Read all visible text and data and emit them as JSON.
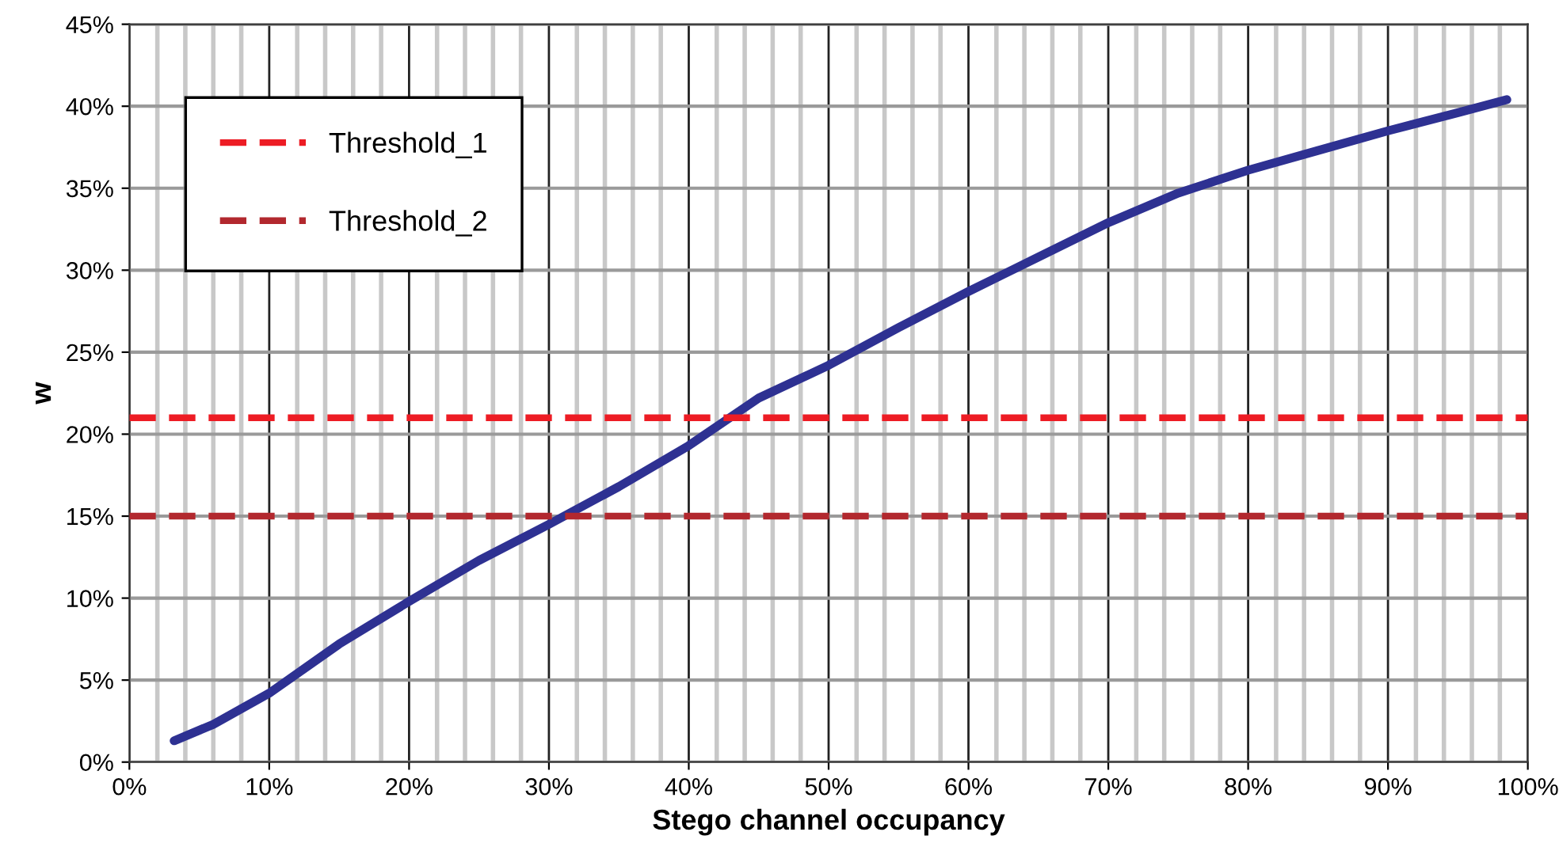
{
  "chart_data": {
    "type": "line",
    "xlabel": "Stego channel occupancy",
    "ylabel": "w",
    "xlim": [
      0,
      100
    ],
    "ylim": [
      0,
      45
    ],
    "xticks": [
      {
        "value": 0,
        "label": "0%"
      },
      {
        "value": 2,
        "label": null
      },
      {
        "value": 4,
        "label": null
      },
      {
        "value": 6,
        "label": null
      },
      {
        "value": 8,
        "label": null
      },
      {
        "value": 10,
        "label": "10%"
      },
      {
        "value": 12,
        "label": null
      },
      {
        "value": 14,
        "label": null
      },
      {
        "value": 16,
        "label": null
      },
      {
        "value": 18,
        "label": null
      },
      {
        "value": 20,
        "label": "20%"
      },
      {
        "value": 22,
        "label": null
      },
      {
        "value": 24,
        "label": null
      },
      {
        "value": 26,
        "label": null
      },
      {
        "value": 28,
        "label": null
      },
      {
        "value": 30,
        "label": "30%"
      },
      {
        "value": 32,
        "label": null
      },
      {
        "value": 34,
        "label": null
      },
      {
        "value": 36,
        "label": null
      },
      {
        "value": 38,
        "label": null
      },
      {
        "value": 40,
        "label": "40%"
      },
      {
        "value": 42,
        "label": null
      },
      {
        "value": 44,
        "label": null
      },
      {
        "value": 46,
        "label": null
      },
      {
        "value": 48,
        "label": null
      },
      {
        "value": 50,
        "label": "50%"
      },
      {
        "value": 52,
        "label": null
      },
      {
        "value": 54,
        "label": null
      },
      {
        "value": 56,
        "label": null
      },
      {
        "value": 58,
        "label": null
      },
      {
        "value": 60,
        "label": "60%"
      },
      {
        "value": 62,
        "label": null
      },
      {
        "value": 64,
        "label": null
      },
      {
        "value": 66,
        "label": null
      },
      {
        "value": 68,
        "label": null
      },
      {
        "value": 70,
        "label": "70%"
      },
      {
        "value": 72,
        "label": null
      },
      {
        "value": 74,
        "label": null
      },
      {
        "value": 76,
        "label": null
      },
      {
        "value": 78,
        "label": null
      },
      {
        "value": 80,
        "label": "80%"
      },
      {
        "value": 82,
        "label": null
      },
      {
        "value": 84,
        "label": null
      },
      {
        "value": 86,
        "label": null
      },
      {
        "value": 88,
        "label": null
      },
      {
        "value": 90,
        "label": "90%"
      },
      {
        "value": 92,
        "label": null
      },
      {
        "value": 94,
        "label": null
      },
      {
        "value": 96,
        "label": null
      },
      {
        "value": 98,
        "label": null
      },
      {
        "value": 100,
        "label": "100%"
      }
    ],
    "yticks": [
      {
        "value": 0,
        "label": "0%"
      },
      {
        "value": 5,
        "label": "5%"
      },
      {
        "value": 10,
        "label": "10%"
      },
      {
        "value": 15,
        "label": "15%"
      },
      {
        "value": 20,
        "label": "20%"
      },
      {
        "value": 25,
        "label": "25%"
      },
      {
        "value": 30,
        "label": "30%"
      },
      {
        "value": 35,
        "label": "35%"
      },
      {
        "value": 40,
        "label": "40%"
      },
      {
        "value": 45,
        "label": "45%"
      }
    ],
    "grid": true,
    "legend": "top left",
    "series": [
      {
        "color": "#2e3192",
        "line_style": "solid",
        "x": [
          3.2,
          6,
          10,
          15,
          20,
          25,
          30,
          35,
          40,
          45,
          50,
          55,
          60,
          65,
          70,
          75,
          80,
          85,
          90,
          95,
          98.5
        ],
        "values": [
          1.3,
          2.3,
          4.2,
          7.2,
          9.8,
          12.3,
          14.5,
          16.8,
          19.3,
          22.2,
          24.2,
          26.5,
          28.7,
          30.8,
          32.9,
          34.7,
          36.1,
          37.3,
          38.5,
          39.6,
          40.4
        ]
      },
      {
        "name": "Threshold_1",
        "color": "#ed1c24",
        "line_style": "dashed",
        "x": [
          0,
          100
        ],
        "values": [
          21,
          21
        ]
      },
      {
        "name": "Threshold_2",
        "color": "#b2282e",
        "line_style": "dashed",
        "x": [
          0,
          100
        ],
        "values": [
          15,
          15
        ]
      }
    ]
  }
}
